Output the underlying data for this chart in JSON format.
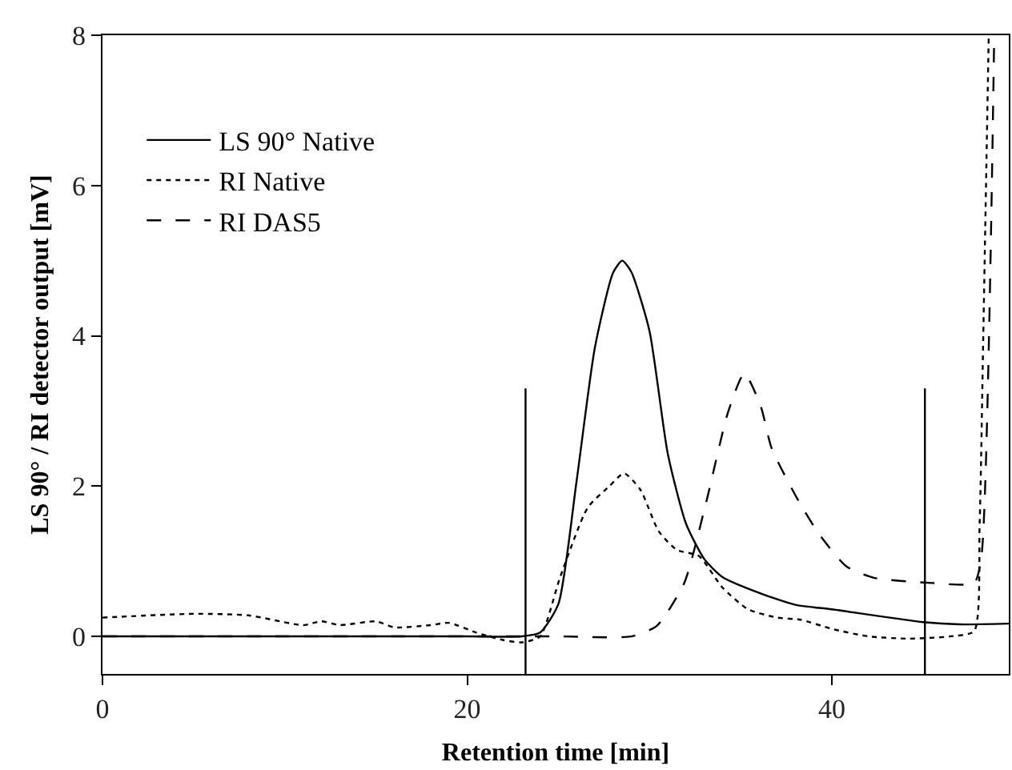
{
  "chart_data": {
    "type": "line",
    "xlabel": "Retention time [min]",
    "ylabel": "LS 90° / RI detector output [mV]",
    "xlim": [
      0,
      49.7
    ],
    "ylim": [
      -0.5,
      8
    ],
    "xticks": [
      0,
      20,
      40
    ],
    "yticks": [
      0,
      2,
      4,
      6,
      8
    ],
    "legend": "top left",
    "marker": "none",
    "series": [
      {
        "name": "LS 90° Native",
        "color": "#000000",
        "line_style": "solid",
        "x": [
          0,
          5,
          10,
          15,
          20,
          23,
          24,
          25,
          26,
          27,
          28,
          28.5,
          29,
          30,
          31,
          32,
          33,
          34,
          36,
          38,
          40,
          45,
          47,
          49.7
        ],
        "values": [
          0,
          0,
          0,
          0,
          0,
          0,
          0.05,
          0.43,
          2.07,
          3.84,
          4.84,
          5.0,
          4.85,
          4.06,
          2.43,
          1.5,
          1.03,
          0.79,
          0.58,
          0.42,
          0.36,
          0.19,
          0.16,
          0.17
        ]
      },
      {
        "name": "RI Native",
        "color": "#000000",
        "line_style": "dotted",
        "x": [
          0,
          5,
          8,
          11,
          12,
          13,
          15,
          16,
          18,
          19,
          20.5,
          22,
          23,
          24,
          25.1,
          26.6,
          27.8,
          28.6,
          29.5,
          30.5,
          31.5,
          32.7,
          34,
          35.4,
          37,
          38.3,
          40,
          42,
          44.2,
          46.5,
          47.8,
          48.1,
          48.3,
          48.6
        ],
        "values": [
          0.25,
          0.3,
          0.28,
          0.15,
          0.2,
          0.15,
          0.2,
          0.12,
          0.15,
          0.18,
          0.05,
          -0.05,
          -0.08,
          0.0,
          0.79,
          1.71,
          2.0,
          2.17,
          1.95,
          1.4,
          1.15,
          1.07,
          0.65,
          0.36,
          0.25,
          0.22,
          0.1,
          0.0,
          -0.03,
          0.0,
          0.07,
          1.5,
          4.0,
          8.0
        ]
      },
      {
        "name": "RI DAS5",
        "color": "#000000",
        "line_style": "dashed",
        "x": [
          0,
          10,
          20,
          25,
          29,
          30.4,
          31.9,
          33.1,
          34.3,
          35.2,
          36.1,
          36.7,
          38.2,
          39.3,
          40.8,
          42.3,
          45.5,
          47.8,
          48.2,
          48.9
        ],
        "values": [
          0,
          0,
          0,
          0,
          0,
          0.14,
          0.71,
          1.78,
          2.98,
          3.5,
          3.06,
          2.5,
          1.79,
          1.36,
          0.93,
          0.78,
          0.71,
          0.71,
          1.07,
          8.0
        ]
      },
      {
        "color": "#000000",
        "line_style": "solid",
        "x": [
          23.2,
          23.2
        ],
        "values": [
          -0.5,
          3.3
        ]
      },
      {
        "color": "#000000",
        "line_style": "solid",
        "x": [
          45.1,
          45.1
        ],
        "values": [
          -0.5,
          3.3
        ]
      }
    ]
  }
}
